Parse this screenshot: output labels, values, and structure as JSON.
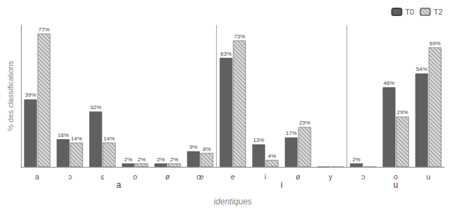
{
  "chart_data": {
    "type": "bar",
    "categories": [
      "a",
      "ɔ",
      "ɛ",
      "o",
      "ø",
      "œ",
      "e",
      "i",
      "ø",
      "y",
      "ɔ",
      "o",
      "u"
    ],
    "groups": [
      {
        "label": "a",
        "categories": [
          "a",
          "ɔ",
          "ɛ",
          "o",
          "ø",
          "œ"
        ]
      },
      {
        "label": "i",
        "categories": [
          "e",
          "i",
          "ø",
          "y"
        ]
      },
      {
        "label": "u",
        "categories": [
          "ɔ",
          "o",
          "u"
        ]
      }
    ],
    "series": [
      {
        "name": "T0",
        "color": "#606060",
        "values": [
          39,
          16,
          32,
          2,
          2,
          9,
          63,
          13,
          17,
          0,
          2,
          46,
          54
        ],
        "value_labels": [
          "39%",
          "16%",
          "32%",
          "2%",
          "2%",
          "9%",
          "63%",
          "13%",
          "17%",
          null,
          "2%",
          "46%",
          "54%"
        ]
      },
      {
        "name": "T2",
        "color": "#d8d8d8",
        "values": [
          77,
          14,
          14,
          2,
          2,
          8,
          73,
          4,
          23,
          0,
          0,
          29,
          69
        ],
        "value_labels": [
          "77%",
          "14%",
          "14%",
          "2%",
          "2%",
          "8%",
          "73%",
          "4%",
          "23%",
          null,
          null,
          "29%",
          "69%"
        ]
      }
    ],
    "ylabel": "% des classifications",
    "xlabel": "identiques",
    "ylim": [
      0,
      82
    ],
    "grid": false,
    "legend": "upper right",
    "data_labels": true,
    "tick_labels": "x"
  }
}
